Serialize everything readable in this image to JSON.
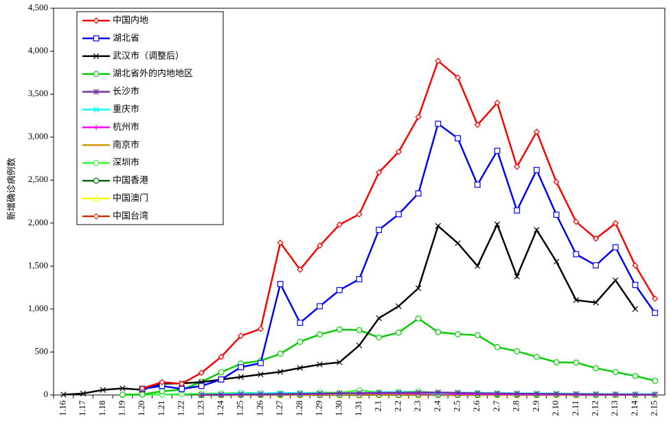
{
  "chart_data": {
    "type": "line",
    "y_label": "新增确诊病例数",
    "categories": [
      "1.16",
      "1.17",
      "1.18",
      "1.19",
      "1.20",
      "1.21",
      "1.22",
      "1.23",
      "1.24",
      "1.25",
      "1.26",
      "1.27",
      "1.28",
      "1.29",
      "1.30",
      "1.31",
      "2.1",
      "2.2",
      "2.3",
      "2.4",
      "2.5",
      "2.6",
      "2.7",
      "2.8",
      "2.9",
      "2.10",
      "2.11",
      "2.12",
      "2.13",
      "2.14",
      "2.15"
    ],
    "ylim": [
      0,
      4500
    ],
    "yticks": [
      0,
      500,
      {
        "value": 1000,
        "label": "1,000"
      },
      {
        "value": 1500,
        "label": "1,500"
      },
      {
        "value": 2000,
        "label": "2,000"
      },
      {
        "value": 2500,
        "label": "2,500"
      },
      {
        "value": 3000,
        "label": "3,000"
      },
      {
        "value": 3500,
        "label": "3,500"
      },
      {
        "value": 4000,
        "label": "4,000"
      },
      {
        "value": 4500,
        "label": "4,500"
      }
    ],
    "legend": "upper left",
    "series": [
      {
        "name": "中国内地",
        "color": "#ff0000",
        "marker": "diamond",
        "values": [
          null,
          null,
          null,
          null,
          77,
          149,
          131,
          259,
          444,
          688,
          769,
          1771,
          1459,
          1737,
          1982,
          2102,
          2590,
          2829,
          3235,
          3887,
          3694,
          3143,
          3399,
          2656,
          3062,
          2478,
          2015,
          1820,
          1998,
          1506,
          1121
        ]
      },
      {
        "name": "湖北省",
        "color": "#0000ff",
        "marker": "square",
        "values": [
          null,
          null,
          null,
          null,
          72,
          105,
          70,
          105,
          180,
          323,
          371,
          1291,
          840,
          1032,
          1220,
          1347,
          1921,
          2103,
          2345,
          3156,
          2987,
          2447,
          2841,
          2147,
          2618,
          2097,
          1638,
          1508,
          1718,
          1280,
          955
        ]
      },
      {
        "name": "武汉市（调整后）",
        "color": "#000000",
        "marker": "x",
        "values": [
          4,
          17,
          59,
          77,
          60,
          131,
          135,
          150,
          180,
          210,
          240,
          270,
          315,
          355,
          380,
          576,
          894,
          1033,
          1242,
          1967,
          1766,
          1501,
          1985,
          1379,
          1921,
          1552,
          1104,
          1075,
          1334,
          1000,
          null
        ]
      },
      {
        "name": "湖北省外的内地地区",
        "color": "#00cc00",
        "marker": "circle",
        "values": [
          null,
          null,
          null,
          5,
          5,
          44,
          61,
          154,
          264,
          365,
          398,
          480,
          619,
          705,
          762,
          755,
          669,
          726,
          890,
          731,
          707,
          696,
          558,
          509,
          444,
          381,
          377,
          312,
          267,
          221,
          166
        ]
      },
      {
        "name": "长沙市",
        "color": "#7030a0",
        "marker": "asterisk",
        "values": [
          null,
          null,
          null,
          null,
          null,
          null,
          null,
          2,
          4,
          6,
          8,
          10,
          13,
          15,
          20,
          22,
          25,
          25,
          28,
          30,
          25,
          20,
          18,
          15,
          14,
          12,
          10,
          8,
          7,
          5,
          4
        ]
      },
      {
        "name": "重庆市",
        "color": "#00ffff",
        "marker": "x",
        "values": [
          null,
          null,
          null,
          null,
          null,
          null,
          null,
          5,
          9,
          18,
          17,
          25,
          22,
          20,
          15,
          20,
          30,
          35,
          28,
          20,
          28,
          25,
          22,
          20,
          18,
          18,
          15,
          12,
          10,
          10,
          8
        ]
      },
      {
        "name": "杭州市",
        "color": "#ff00ff",
        "marker": "plus",
        "values": [
          null,
          null,
          null,
          null,
          null,
          null,
          null,
          2,
          3,
          5,
          6,
          8,
          10,
          12,
          14,
          16,
          18,
          19,
          15,
          14,
          12,
          10,
          8,
          8,
          6,
          5,
          4,
          3,
          3,
          2,
          2
        ]
      },
      {
        "name": "南京市",
        "color": "#cc9900",
        "marker": "dash",
        "values": [
          null,
          null,
          null,
          null,
          null,
          null,
          null,
          1,
          1,
          2,
          2,
          3,
          3,
          4,
          5,
          5,
          5,
          6,
          6,
          5,
          4,
          4,
          3,
          3,
          3,
          2,
          2,
          2,
          1,
          1,
          1
        ]
      },
      {
        "name": "深圳市",
        "color": "#33ff33",
        "marker": "circle",
        "values": [
          null,
          null,
          null,
          1,
          5,
          5,
          10,
          15,
          18,
          25,
          20,
          15,
          20,
          30,
          25,
          55,
          30,
          35,
          40,
          25,
          25,
          20,
          15,
          12,
          10,
          8,
          8,
          5,
          5,
          5,
          3
        ]
      },
      {
        "name": "中国香港",
        "color": "#006600",
        "marker": "circle",
        "values": [
          null,
          null,
          null,
          null,
          null,
          null,
          null,
          1,
          1,
          2,
          3,
          2,
          1,
          0,
          2,
          0,
          2,
          1,
          3,
          1,
          1,
          1,
          3,
          2,
          1,
          2,
          1,
          0,
          1,
          3,
          3
        ]
      },
      {
        "name": "中国澳门",
        "color": "#ffff00",
        "marker": "triangle",
        "values": [
          null,
          null,
          null,
          null,
          null,
          null,
          null,
          1,
          0,
          2,
          1,
          0,
          1,
          0,
          0,
          0,
          0,
          0,
          0,
          2,
          1,
          0,
          0,
          0,
          0,
          0,
          0,
          0,
          0,
          0,
          0
        ]
      },
      {
        "name": "中国台湾",
        "color": "#cc3300",
        "marker": "diamond",
        "values": [
          null,
          null,
          null,
          null,
          null,
          null,
          null,
          1,
          0,
          1,
          0,
          0,
          1,
          1,
          0,
          0,
          1,
          0,
          1,
          0,
          0,
          0,
          0,
          0,
          1,
          0,
          0,
          0,
          1,
          0,
          0
        ]
      }
    ]
  }
}
